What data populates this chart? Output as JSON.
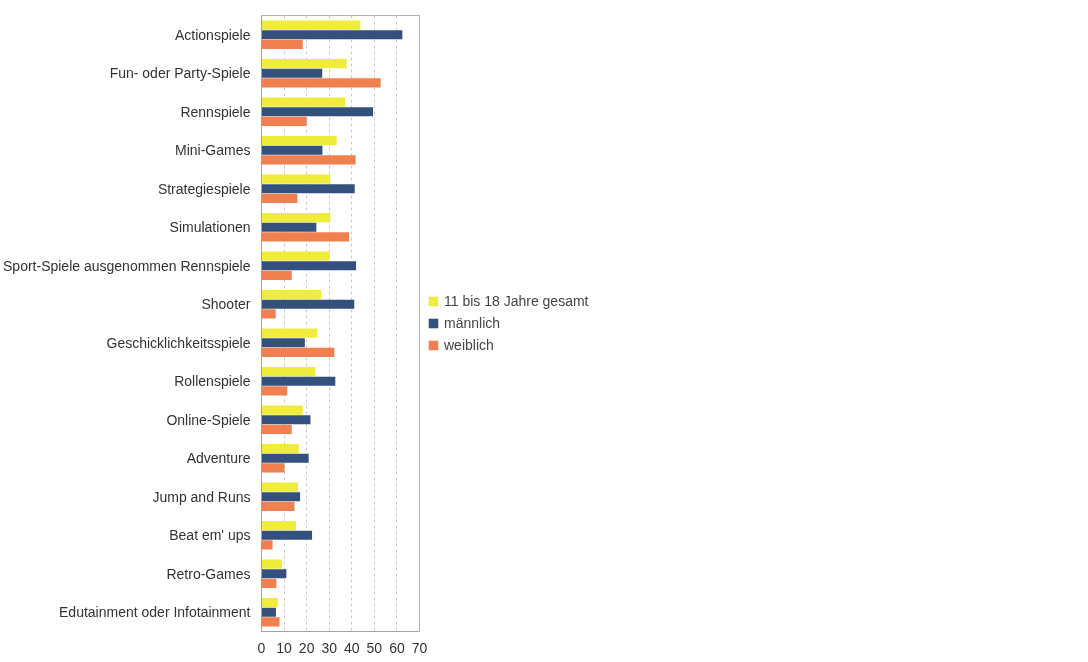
{
  "chart_data": {
    "type": "bar",
    "orientation": "horizontal",
    "categories": [
      "Actionspiele",
      "Fun- oder Party-Spiele",
      "Rennspiele",
      "Mini-Games",
      "Strategiespiele",
      "Simulationen",
      "Sport-Spiele ausgenommen Rennspiele",
      "Shooter",
      "Geschicklichkeitsspiele",
      "Rollenspiele",
      "Online-Spiele",
      "Adventure",
      "Jump and Runs",
      "Beat em' ups",
      "Retro-Games",
      "Edutainment oder Infotainment"
    ],
    "series": [
      {
        "name": "11 bis 18 Jahre gesamt",
        "color": "#f0ec3c",
        "values": [
          43.8,
          37.7,
          37.0,
          33.3,
          30.5,
          30.5,
          30.2,
          26.5,
          24.7,
          23.8,
          18.3,
          16.5,
          16.2,
          15.3,
          9.1,
          7.2
        ]
      },
      {
        "name": "männlich",
        "color": "#34507c",
        "values": [
          62.4,
          26.9,
          49.4,
          27.0,
          41.3,
          24.3,
          41.9,
          41.1,
          19.2,
          32.7,
          21.7,
          20.9,
          17.1,
          22.4,
          11.0,
          6.4
        ]
      },
      {
        "name": "weiblich",
        "color": "#f08050",
        "values": [
          18.3,
          52.8,
          20.0,
          41.7,
          15.9,
          38.8,
          13.4,
          6.3,
          32.3,
          11.4,
          13.4,
          10.2,
          14.6,
          4.9,
          6.6,
          8.0
        ]
      }
    ],
    "xlim": [
      0,
      70
    ],
    "xticks": [
      0,
      10,
      20,
      30,
      40,
      50,
      60,
      70
    ],
    "grid": "x",
    "legend": "right"
  }
}
